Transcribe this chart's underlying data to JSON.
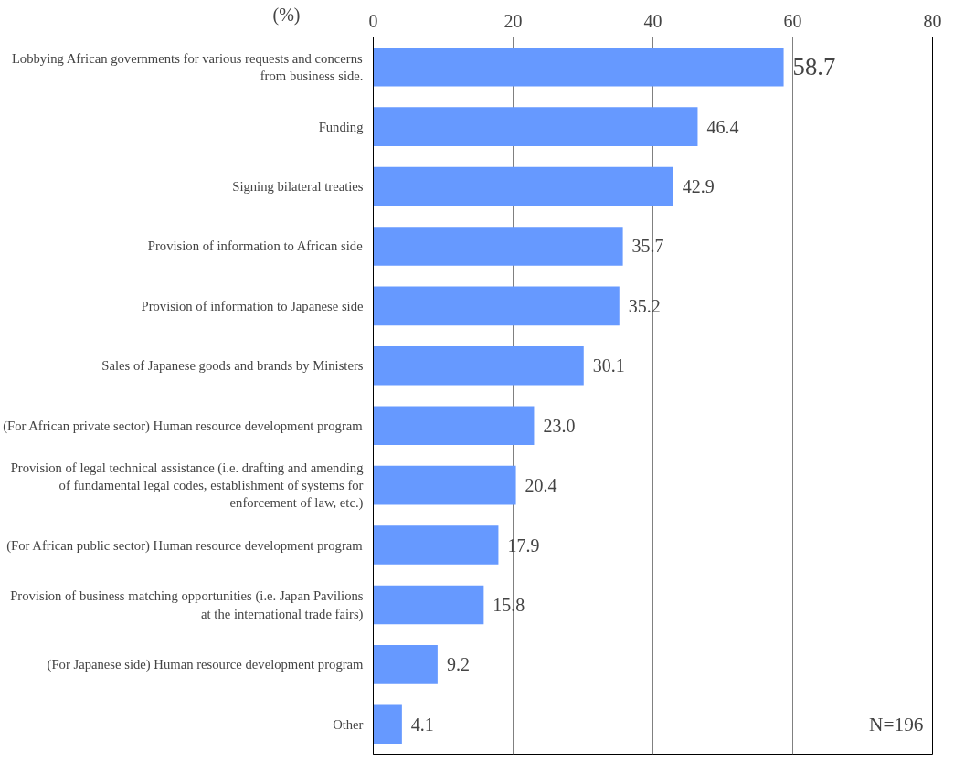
{
  "chart_data": {
    "type": "bar",
    "orientation": "horizontal",
    "xlabel": "(%)",
    "categories": [
      "Lobbying African governments for various requests and concerns\nfrom business side.",
      "Funding",
      "Signing bilateral treaties",
      "Provision of information to African side",
      "Provision of information to Japanese side",
      "Sales of Japanese goods and brands by Ministers",
      "(For African private sector) Human resource development program",
      "Provision of legal technical assistance (i.e. drafting and amending\nof fundamental legal codes, establishment of systems for\nenforcement of law, etc.)",
      "(For African public sector) Human resource development program",
      "Provision of business matching opportunities (i.e. Japan Pavilions\nat the international trade fairs)",
      "(For Japanese side) Human resource development program",
      "Other"
    ],
    "values": [
      58.7,
      46.4,
      42.9,
      35.7,
      35.2,
      30.1,
      23.0,
      20.4,
      17.9,
      15.8,
      9.2,
      4.1
    ],
    "value_labels": [
      "58.7",
      "46.4",
      "42.9",
      "35.7",
      "35.2",
      "30.1",
      "23.0",
      "20.4",
      "17.9",
      "15.8",
      "9.2",
      "4.1"
    ],
    "color": "#6699ff",
    "xlim": [
      0,
      80
    ],
    "xticks": [
      0,
      20,
      40,
      60,
      80
    ],
    "grid": "x",
    "annotations": [
      "N=196"
    ]
  }
}
